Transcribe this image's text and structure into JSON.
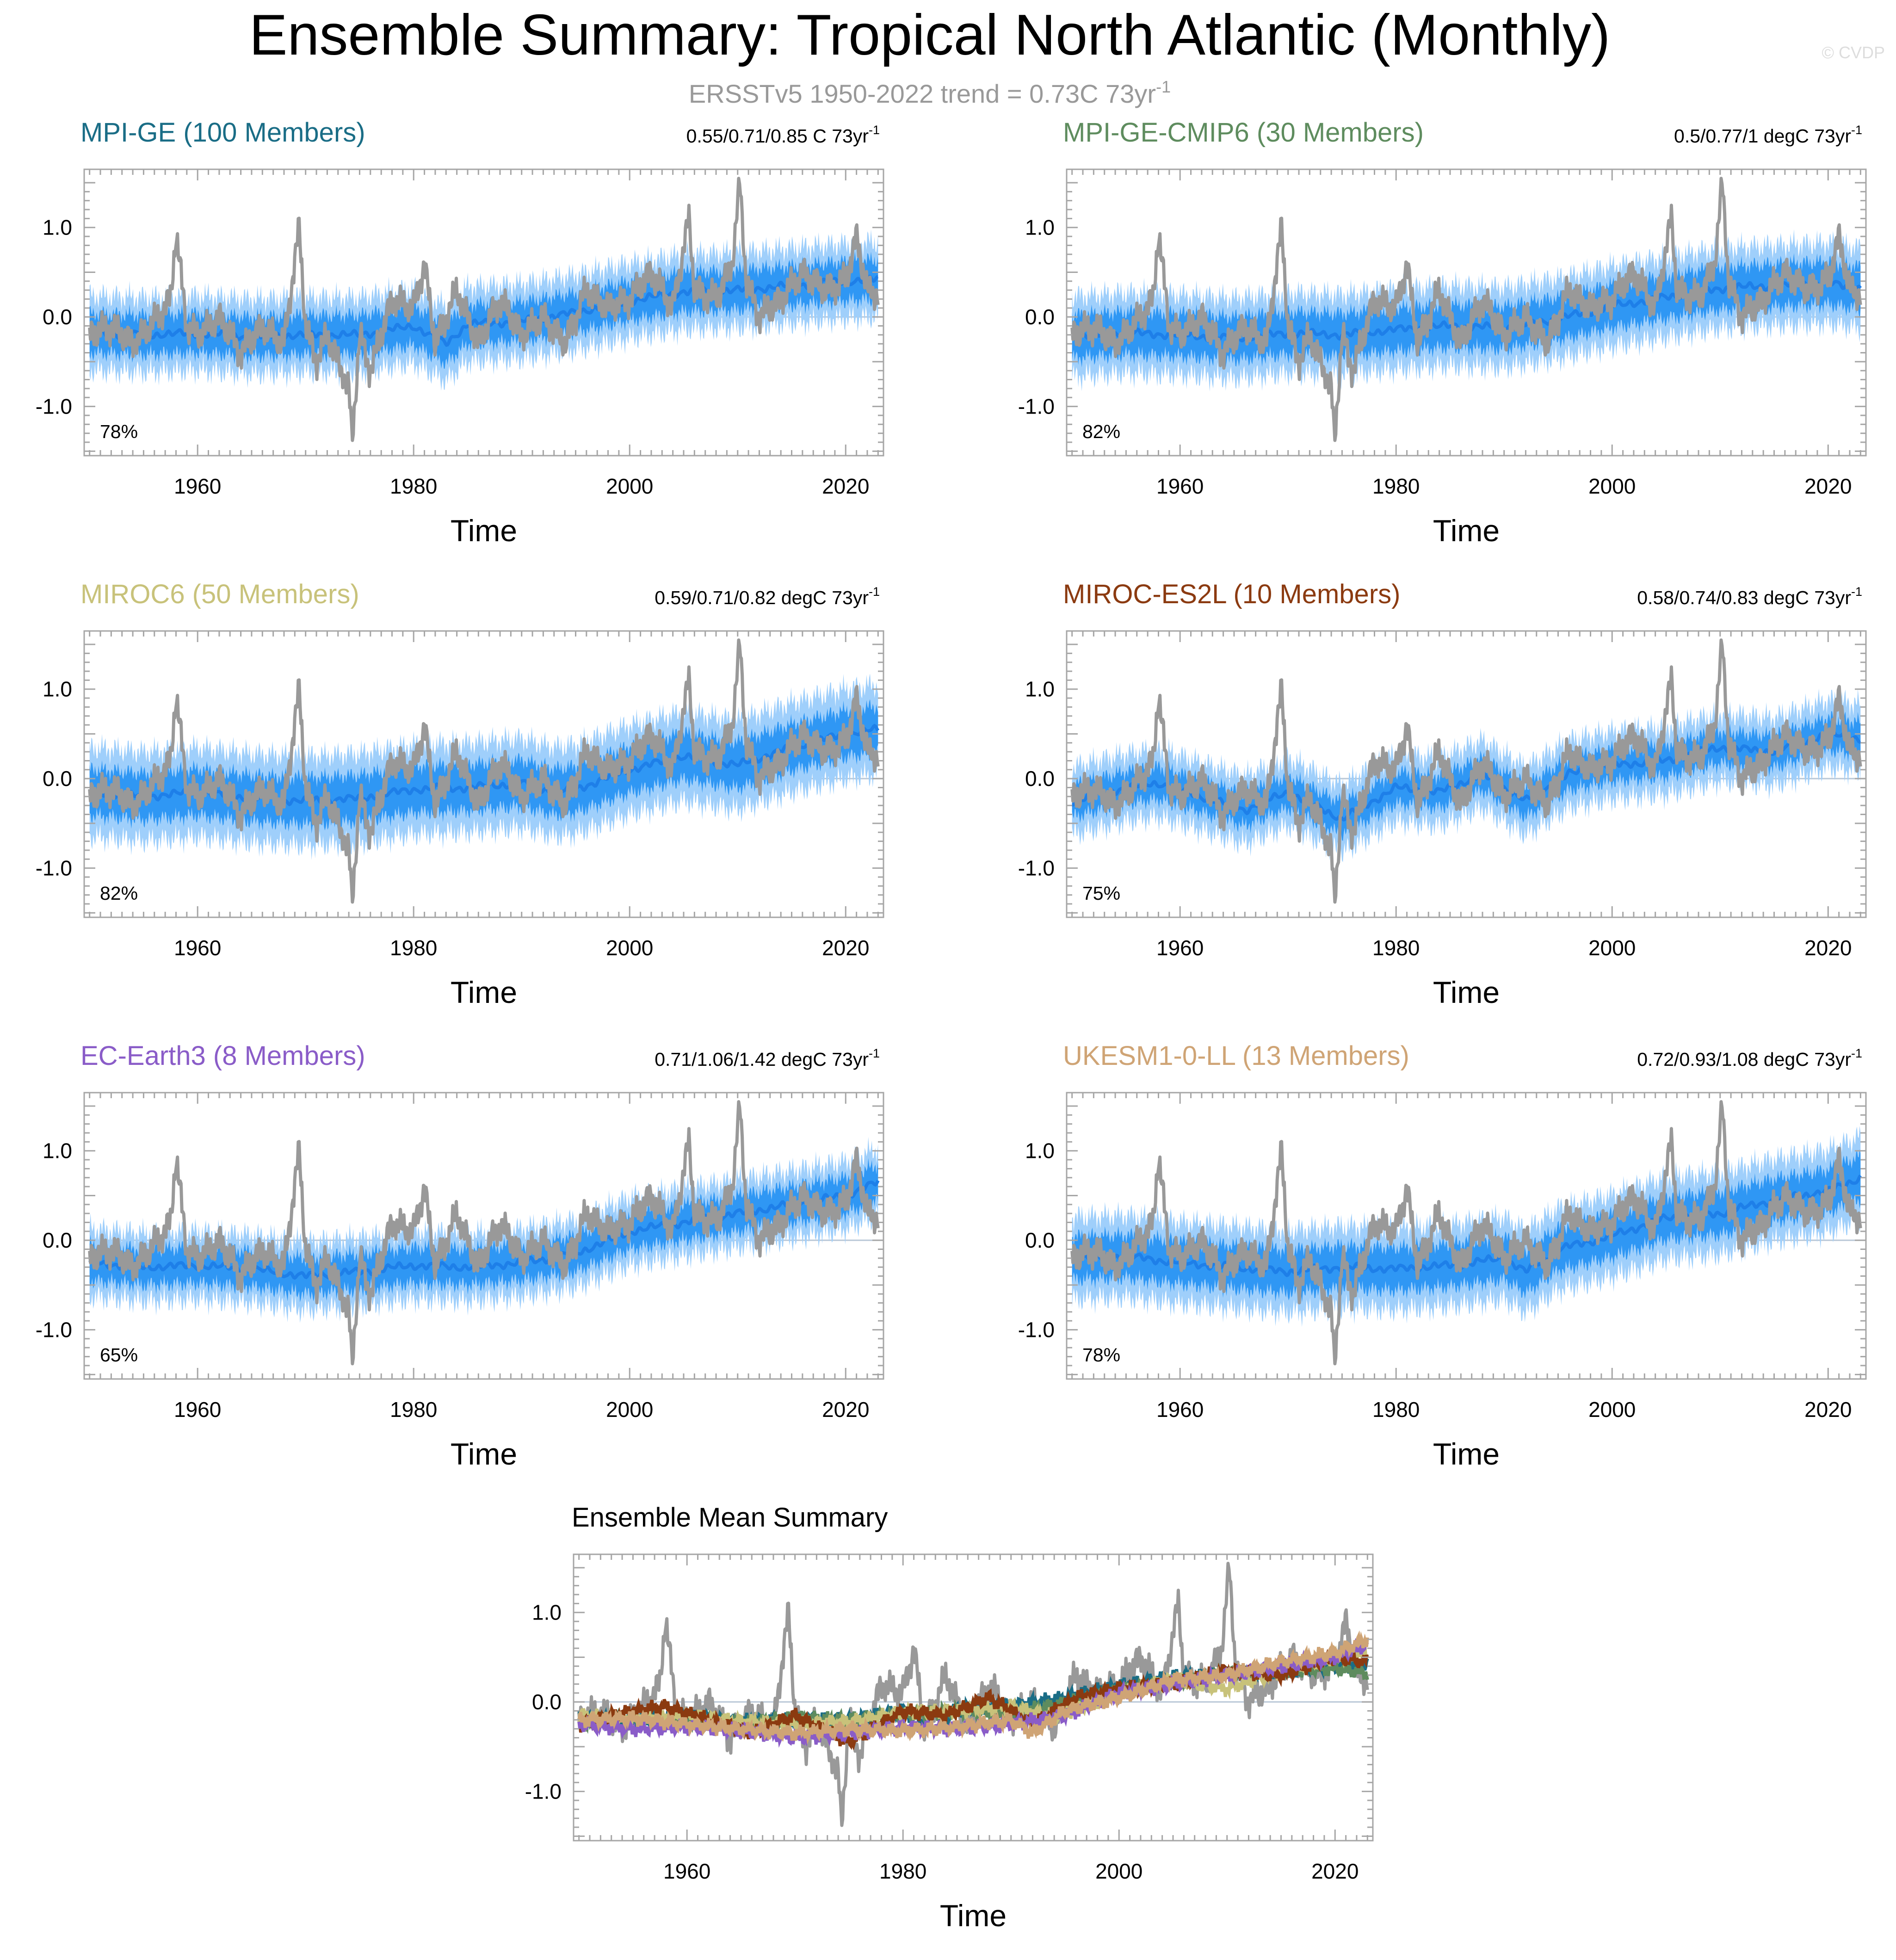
{
  "figure": {
    "title": "Ensemble Summary: Tropical North Atlantic (Monthly)",
    "subtitle_text": "ERSSTv5 1950-2022 trend = 0.73C 73yr",
    "subtitle_sup": "-1",
    "watermark": "© CVDP"
  },
  "colors": {
    "observations": "#999999",
    "spread_outer": "#9fcffb",
    "spread_inner": "#2f97f4",
    "ensemble_mean": "#1e7fe8",
    "zero_line": "#b9c7d6",
    "axis": "#a6a6a6"
  },
  "chart_data": [
    {
      "type": "line",
      "model": "MPI-GE (100 Members)",
      "model_color": "#1a6d86",
      "trend_text": "0.55/0.71/0.85 C 73yr",
      "trend_sup": "-1",
      "percent": "78%",
      "xlabel": "Time",
      "xlim": [
        1949.5,
        2023.5
      ],
      "ylim": [
        -1.55,
        1.65
      ],
      "xticks": [
        1960,
        1980,
        2000,
        2020
      ],
      "xtick_labels": [
        "1960",
        "1980",
        "2000",
        "2020"
      ],
      "yticks": [
        -1.0,
        0.0,
        1.0
      ],
      "ytick_labels": [
        "-1.0",
        "0.0",
        "1.0"
      ],
      "spread_inner": 0.22,
      "spread_outer": 0.42,
      "series": [
        {
          "name": "ensemble mean",
          "x": [
            1950,
            1955,
            1960,
            1965,
            1970,
            1975,
            1980,
            1983,
            1985,
            1990,
            1995,
            2000,
            2005,
            2010,
            2015,
            2020,
            2023
          ],
          "values": [
            -0.18,
            -0.2,
            -0.18,
            -0.22,
            -0.2,
            -0.2,
            -0.1,
            -0.3,
            -0.08,
            -0.05,
            0.05,
            0.18,
            0.28,
            0.3,
            0.35,
            0.4,
            0.42
          ]
        }
      ]
    },
    {
      "type": "line",
      "model": "MPI-GE-CMIP6 (30 Members)",
      "model_color": "#5e8c5e",
      "trend_text": "0.5/0.77/1 degC 73yr",
      "trend_sup": "-1",
      "percent": "82%",
      "xlabel": "Time",
      "xlim": [
        1949.5,
        2023.5
      ],
      "ylim": [
        -1.55,
        1.65
      ],
      "xticks": [
        1960,
        1980,
        2000,
        2020
      ],
      "xtick_labels": [
        "1960",
        "1980",
        "2000",
        "2020"
      ],
      "yticks": [
        -1.0,
        0.0,
        1.0
      ],
      "ytick_labels": [
        "-1.0",
        "0.0",
        "1.0"
      ],
      "spread_inner": 0.24,
      "spread_outer": 0.45,
      "series": [
        {
          "name": "ensemble mean",
          "x": [
            1950,
            1955,
            1960,
            1965,
            1970,
            1975,
            1980,
            1985,
            1990,
            1995,
            2000,
            2005,
            2010,
            2015,
            2020,
            2023
          ],
          "values": [
            -0.22,
            -0.18,
            -0.2,
            -0.24,
            -0.18,
            -0.2,
            -0.14,
            -0.1,
            -0.12,
            -0.02,
            0.12,
            0.22,
            0.32,
            0.35,
            0.38,
            0.32
          ]
        }
      ]
    },
    {
      "type": "line",
      "model": "MIROC6 (50 Members)",
      "model_color": "#c8c27a",
      "trend_text": "0.59/0.71/0.82 degC 73yr",
      "trend_sup": "-1",
      "percent": "82%",
      "xlabel": "Time",
      "xlim": [
        1949.5,
        2023.5
      ],
      "ylim": [
        -1.55,
        1.65
      ],
      "xticks": [
        1960,
        1980,
        2000,
        2020
      ],
      "xtick_labels": [
        "1960",
        "1980",
        "2000",
        "2020"
      ],
      "yticks": [
        -1.0,
        0.0,
        1.0
      ],
      "ytick_labels": [
        "-1.0",
        "0.0",
        "1.0"
      ],
      "spread_inner": 0.26,
      "spread_outer": 0.5,
      "series": [
        {
          "name": "ensemble mean",
          "x": [
            1950,
            1955,
            1960,
            1965,
            1970,
            1975,
            1980,
            1985,
            1990,
            1993,
            1995,
            2000,
            2005,
            2010,
            2015,
            2020,
            2023
          ],
          "values": [
            -0.15,
            -0.2,
            -0.15,
            -0.22,
            -0.25,
            -0.22,
            -0.12,
            -0.1,
            -0.05,
            -0.15,
            -0.12,
            0.1,
            0.25,
            0.15,
            0.35,
            0.5,
            0.55
          ]
        }
      ]
    },
    {
      "type": "line",
      "model": "MIROC-ES2L (10 Members)",
      "model_color": "#8b3a10",
      "trend_text": "0.58/0.74/0.83 degC 73yr",
      "trend_sup": "-1",
      "percent": "75%",
      "xlabel": "Time",
      "xlim": [
        1949.5,
        2023.5
      ],
      "ylim": [
        -1.55,
        1.65
      ],
      "xticks": [
        1960,
        1980,
        2000,
        2020
      ],
      "xtick_labels": [
        "1960",
        "1980",
        "2000",
        "2020"
      ],
      "yticks": [
        -1.0,
        0.0,
        1.0
      ],
      "ytick_labels": [
        "-1.0",
        "0.0",
        "1.0"
      ],
      "spread_inner": 0.18,
      "spread_outer": 0.38,
      "series": [
        {
          "name": "ensemble mean",
          "x": [
            1950,
            1955,
            1958,
            1962,
            1966,
            1970,
            1975,
            1980,
            1984,
            1988,
            1992,
            1996,
            2000,
            2005,
            2010,
            2015,
            2020,
            2023
          ],
          "values": [
            -0.25,
            -0.1,
            -0.05,
            -0.2,
            -0.35,
            -0.15,
            -0.45,
            -0.1,
            -0.15,
            0.05,
            -0.25,
            0.05,
            0.15,
            0.2,
            0.35,
            0.3,
            0.5,
            0.45
          ]
        }
      ]
    },
    {
      "type": "line",
      "model": "EC-Earth3 (8 Members)",
      "model_color": "#8a5cc8",
      "trend_text": "0.71/1.06/1.42 degC 73yr",
      "trend_sup": "-1",
      "percent": "65%",
      "xlabel": "Time",
      "xlim": [
        1949.5,
        2023.5
      ],
      "ylim": [
        -1.55,
        1.65
      ],
      "xticks": [
        1960,
        1980,
        2000,
        2020
      ],
      "xtick_labels": [
        "1960",
        "1980",
        "2000",
        "2020"
      ],
      "yticks": [
        -1.0,
        0.0,
        1.0
      ],
      "ytick_labels": [
        "-1.0",
        "0.0",
        "1.0"
      ],
      "spread_inner": 0.2,
      "spread_outer": 0.38,
      "series": [
        {
          "name": "ensemble mean",
          "x": [
            1950,
            1955,
            1960,
            1965,
            1970,
            1975,
            1980,
            1985,
            1990,
            1995,
            2000,
            2005,
            2010,
            2015,
            2020,
            2023
          ],
          "values": [
            -0.25,
            -0.3,
            -0.28,
            -0.32,
            -0.4,
            -0.35,
            -0.28,
            -0.3,
            -0.25,
            -0.15,
            0.1,
            0.2,
            0.3,
            0.4,
            0.5,
            0.65
          ]
        }
      ]
    },
    {
      "type": "line",
      "model": "UKESM1-0-LL (13 Members)",
      "model_color": "#cfa475",
      "trend_text": "0.72/0.93/1.08 degC 73yr",
      "trend_sup": "-1",
      "percent": "78%",
      "xlabel": "Time",
      "xlim": [
        1949.5,
        2023.5
      ],
      "ylim": [
        -1.55,
        1.65
      ],
      "xticks": [
        1960,
        1980,
        2000,
        2020
      ],
      "xtick_labels": [
        "1960",
        "1980",
        "2000",
        "2020"
      ],
      "yticks": [
        -1.0,
        0.0,
        1.0
      ],
      "ytick_labels": [
        "-1.0",
        "0.0",
        "1.0"
      ],
      "spread_inner": 0.24,
      "spread_outer": 0.46,
      "series": [
        {
          "name": "ensemble mean",
          "x": [
            1950,
            1955,
            1960,
            1965,
            1970,
            1975,
            1980,
            1985,
            1990,
            1992,
            1995,
            2000,
            2005,
            2010,
            2015,
            2020,
            2023
          ],
          "values": [
            -0.2,
            -0.18,
            -0.25,
            -0.3,
            -0.35,
            -0.3,
            -0.32,
            -0.28,
            -0.2,
            -0.35,
            -0.1,
            0.05,
            0.25,
            0.3,
            0.45,
            0.55,
            0.7
          ]
        }
      ]
    },
    {
      "type": "line",
      "title": "Ensemble Mean Summary",
      "xlabel": "Time",
      "xlim": [
        1949.5,
        2023.5
      ],
      "ylim": [
        -1.55,
        1.65
      ],
      "xticks": [
        1960,
        1980,
        2000,
        2020
      ],
      "xtick_labels": [
        "1960",
        "1980",
        "2000",
        "2020"
      ],
      "yticks": [
        -1.0,
        0.0,
        1.0
      ],
      "ytick_labels": [
        "-1.0",
        "0.0",
        "1.0"
      ],
      "series": [
        {
          "name": "MPI-GE",
          "color": "#1a6d86",
          "x": [
            1950,
            1955,
            1960,
            1965,
            1970,
            1975,
            1980,
            1983,
            1985,
            1990,
            1995,
            2000,
            2005,
            2010,
            2015,
            2020,
            2023
          ],
          "values": [
            -0.18,
            -0.2,
            -0.18,
            -0.22,
            -0.2,
            -0.2,
            -0.1,
            -0.3,
            -0.08,
            -0.05,
            0.05,
            0.18,
            0.28,
            0.3,
            0.35,
            0.4,
            0.42
          ]
        },
        {
          "name": "MPI-GE-CMIP6",
          "color": "#5e8c5e",
          "x": [
            1950,
            1955,
            1960,
            1965,
            1970,
            1975,
            1980,
            1985,
            1990,
            1995,
            2000,
            2005,
            2010,
            2015,
            2020,
            2023
          ],
          "values": [
            -0.22,
            -0.18,
            -0.2,
            -0.24,
            -0.18,
            -0.2,
            -0.14,
            -0.1,
            -0.12,
            -0.02,
            0.12,
            0.22,
            0.32,
            0.35,
            0.38,
            0.32
          ]
        },
        {
          "name": "MIROC6",
          "color": "#c8c27a",
          "x": [
            1950,
            1955,
            1960,
            1965,
            1970,
            1975,
            1980,
            1985,
            1990,
            1993,
            1995,
            2000,
            2005,
            2010,
            2015,
            2020,
            2023
          ],
          "values": [
            -0.15,
            -0.2,
            -0.15,
            -0.22,
            -0.25,
            -0.22,
            -0.12,
            -0.1,
            -0.05,
            -0.15,
            -0.12,
            0.1,
            0.25,
            0.15,
            0.35,
            0.5,
            0.55
          ]
        },
        {
          "name": "MIROC-ES2L",
          "color": "#8b3a10",
          "x": [
            1950,
            1955,
            1958,
            1962,
            1966,
            1970,
            1975,
            1980,
            1984,
            1988,
            1992,
            1996,
            2000,
            2005,
            2010,
            2015,
            2020,
            2023
          ],
          "values": [
            -0.25,
            -0.1,
            -0.05,
            -0.2,
            -0.35,
            -0.15,
            -0.45,
            -0.1,
            -0.15,
            0.05,
            -0.25,
            0.05,
            0.15,
            0.2,
            0.35,
            0.3,
            0.5,
            0.45
          ]
        },
        {
          "name": "EC-Earth3",
          "color": "#8a5cc8",
          "x": [
            1950,
            1955,
            1960,
            1965,
            1970,
            1975,
            1980,
            1985,
            1990,
            1995,
            2000,
            2005,
            2010,
            2015,
            2020,
            2023
          ],
          "values": [
            -0.25,
            -0.3,
            -0.28,
            -0.32,
            -0.4,
            -0.35,
            -0.28,
            -0.3,
            -0.25,
            -0.15,
            0.1,
            0.2,
            0.3,
            0.4,
            0.5,
            0.65
          ]
        },
        {
          "name": "UKESM1-0-LL",
          "color": "#cfa475",
          "x": [
            1950,
            1955,
            1960,
            1965,
            1970,
            1975,
            1980,
            1985,
            1990,
            1992,
            1995,
            2000,
            2005,
            2010,
            2015,
            2020,
            2023
          ],
          "values": [
            -0.2,
            -0.18,
            -0.25,
            -0.3,
            -0.35,
            -0.3,
            -0.32,
            -0.28,
            -0.2,
            -0.35,
            -0.1,
            0.05,
            0.25,
            0.3,
            0.45,
            0.55,
            0.7
          ]
        }
      ]
    }
  ],
  "observations": {
    "name": "ERSSTv5",
    "x": [
      1950,
      1952,
      1954,
      1956,
      1957.5,
      1958,
      1959,
      1960,
      1962,
      1964,
      1966,
      1968,
      1969.4,
      1970,
      1971,
      1972,
      1974,
      1974.3,
      1975,
      1976,
      1978,
      1980,
      1981,
      1982,
      1984,
      1986,
      1988,
      1990,
      1992,
      1994,
      1996,
      1998,
      2000,
      2002,
      2004,
      2005.5,
      2006,
      2008,
      2009.5,
      2010.2,
      2010.8,
      2012,
      2014,
      2016,
      2018,
      2020,
      2021,
      2022,
      2023
    ],
    "values": [
      -0.2,
      -0.1,
      -0.3,
      -0.05,
      0.2,
      0.95,
      -0.1,
      -0.2,
      0.0,
      -0.4,
      -0.1,
      -0.3,
      1.0,
      -0.1,
      -0.5,
      -0.2,
      -0.8,
      -1.4,
      -0.2,
      -0.6,
      0.2,
      0.1,
      0.6,
      -0.3,
      0.3,
      -0.3,
      0.2,
      -0.2,
      0.0,
      -0.3,
      0.3,
      0.1,
      0.2,
      0.5,
      0.1,
      1.1,
      0.3,
      0.2,
      0.6,
      1.5,
      0.4,
      0.0,
      0.2,
      0.5,
      0.3,
      0.4,
      0.9,
      0.3,
      0.25
    ]
  }
}
